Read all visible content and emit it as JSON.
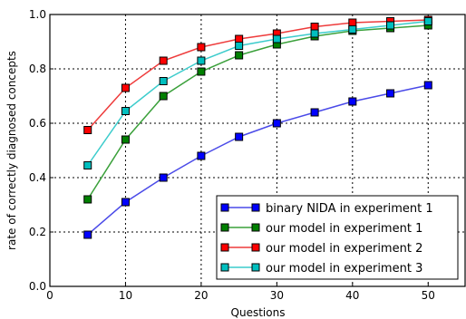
{
  "chart_data": {
    "type": "line",
    "xlabel": "Questions",
    "ylabel": "rate of correctly diagnosed concepts",
    "xlim": [
      0,
      55
    ],
    "ylim": [
      0.0,
      1.0
    ],
    "xticks": [
      0,
      10,
      20,
      30,
      40,
      50
    ],
    "yticks": [
      0.0,
      0.2,
      0.4,
      0.6,
      0.8,
      1.0
    ],
    "xtick_labels": [
      "0",
      "10",
      "20",
      "30",
      "40",
      "50"
    ],
    "ytick_labels": [
      "0.0",
      "0.2",
      "0.4",
      "0.6",
      "0.8",
      "1.0"
    ],
    "grid": true,
    "legend_position": "bottom-right",
    "x": [
      5,
      10,
      15,
      20,
      25,
      30,
      35,
      40,
      45,
      50
    ],
    "series": [
      {
        "name": "binary NIDA in experiment 1",
        "line_color": "#4a4ae8",
        "marker_color": "#0000ff",
        "values": [
          0.19,
          0.31,
          0.4,
          0.48,
          0.55,
          0.6,
          0.64,
          0.68,
          0.71,
          0.74
        ]
      },
      {
        "name": "our model in experiment 1",
        "line_color": "#3aa03a",
        "marker_color": "#008000",
        "values": [
          0.32,
          0.54,
          0.7,
          0.79,
          0.85,
          0.89,
          0.92,
          0.94,
          0.95,
          0.96
        ]
      },
      {
        "name": "our model in experiment 2",
        "line_color": "#ee3b3b",
        "marker_color": "#ff0000",
        "values": [
          0.575,
          0.73,
          0.83,
          0.88,
          0.91,
          0.93,
          0.955,
          0.97,
          0.975,
          0.98
        ]
      },
      {
        "name": "our model in experiment 3",
        "line_color": "#3ccccc",
        "marker_color": "#00bfbf",
        "values": [
          0.445,
          0.645,
          0.755,
          0.83,
          0.885,
          0.91,
          0.93,
          0.945,
          0.96,
          0.975
        ]
      }
    ]
  }
}
